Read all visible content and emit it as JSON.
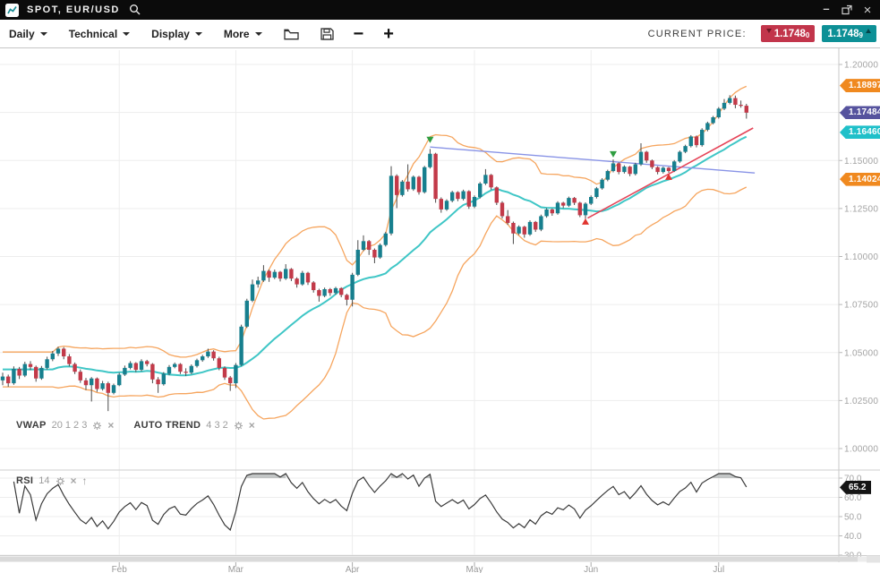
{
  "titlebar": {
    "title": "SPOT, EUR/USD"
  },
  "window_controls": {
    "minimize": "–",
    "close": "×"
  },
  "toolbar": {
    "menus": [
      {
        "label": "Daily"
      },
      {
        "label": "Technical"
      },
      {
        "label": "Display"
      },
      {
        "label": "More"
      }
    ],
    "zoom_out_label": "−",
    "zoom_in_label": "+",
    "current_price_label": "CURRENT PRICE:",
    "bid": {
      "value": "1.1748",
      "pip": "0"
    },
    "ask": {
      "value": "1.1748",
      "pip": "9"
    }
  },
  "legend": {
    "vwap_name": "VWAP",
    "vwap_params": "20 1 2 3",
    "autotrend_name": "AUTO TREND",
    "autotrend_params": "4 3 2",
    "rsi_name": "RSI",
    "rsi_params": "14",
    "rsi_expand_arrow": "↑"
  },
  "axes": {
    "price_ticks": [
      {
        "label": "1.20000",
        "value": 1.2
      },
      {
        "label": "1.17500",
        "value": 1.175
      },
      {
        "label": "1.15000",
        "value": 1.15
      },
      {
        "label": "1.12500",
        "value": 1.125
      },
      {
        "label": "1.10000",
        "value": 1.1
      },
      {
        "label": "1.07500",
        "value": 1.075
      },
      {
        "label": "1.05000",
        "value": 1.05
      },
      {
        "label": "1.02500",
        "value": 1.025
      },
      {
        "label": "1.00000",
        "value": 1.0
      }
    ],
    "rsi_ticks": [
      {
        "label": "70.0",
        "value": 70
      },
      {
        "label": "60.0",
        "value": 60
      },
      {
        "label": "50.0",
        "value": 50
      },
      {
        "label": "40.0",
        "value": 40
      },
      {
        "label": "30.0",
        "value": 30
      }
    ],
    "months": [
      {
        "label": "Feb",
        "index": 21
      },
      {
        "label": "Mar",
        "index": 42
      },
      {
        "label": "Apr",
        "index": 63
      },
      {
        "label": "May",
        "index": 85
      },
      {
        "label": "Jun",
        "index": 106
      },
      {
        "label": "Jul",
        "index": 129
      }
    ]
  },
  "price_labels": [
    {
      "name": "bollinger-upper",
      "value": "1.18897",
      "price": 1.18897,
      "color": "#f0891f"
    },
    {
      "name": "last-price",
      "value": "1.174845",
      "price": 1.174845,
      "color": "#56539e"
    },
    {
      "name": "vwap-value",
      "value": "1.16460",
      "price": 1.1646,
      "color": "#1fc0c9"
    },
    {
      "name": "bollinger-lower",
      "value": "1.14024",
      "price": 1.14024,
      "color": "#f0891f"
    }
  ],
  "rsi_value_label": {
    "value": "65.2",
    "number": 65.2
  },
  "colors": {
    "bull": "#177f8e",
    "bear": "#c23a49",
    "wick": "#4a4a4a",
    "vwap": "#3fc6c6",
    "band": "#f6a55e",
    "trend_blue": "#8893e6",
    "trend_red": "#e54458",
    "rsi_line": "#3a3a3a",
    "rsi_fill": "#a3a8a8",
    "grid": "#ededed",
    "axis": "#c9c9c9",
    "tick_text": "#a3a3a3",
    "sell_marker": "#2f9e41",
    "buy_marker": "#e0342f"
  },
  "chart_data": {
    "type": "candlestick",
    "symbol": "EUR/USD",
    "timeframe": "Daily",
    "ylim": [
      1.0,
      1.2
    ],
    "indicators": {
      "vwap_period": 20,
      "bollinger_stddev": 2,
      "rsi_period": 14,
      "bollinger_upper_current": 1.18897,
      "vwap_current": 1.1646,
      "bollinger_lower_current": 1.14024,
      "last_price": 1.174845,
      "rsi_current": 65.2
    },
    "candles": [
      [
        1.0355,
        1.0395,
        1.033,
        1.0375
      ],
      [
        1.0375,
        1.0385,
        1.0322,
        1.034
      ],
      [
        1.034,
        1.0428,
        1.0332,
        1.0415
      ],
      [
        1.0415,
        1.0425,
        1.0362,
        1.038
      ],
      [
        1.038,
        1.0452,
        1.0372,
        1.044
      ],
      [
        1.044,
        1.0455,
        1.0408,
        1.0425
      ],
      [
        1.0425,
        1.0432,
        1.0348,
        1.0365
      ],
      [
        1.0365,
        1.043,
        1.0358,
        1.042
      ],
      [
        1.042,
        1.0478,
        1.0412,
        1.0465
      ],
      [
        1.0465,
        1.0508,
        1.0455,
        1.0495
      ],
      [
        1.0495,
        1.053,
        1.0482,
        1.052
      ],
      [
        1.052,
        1.0528,
        1.0465,
        1.048
      ],
      [
        1.048,
        1.0492,
        1.0428,
        1.044
      ],
      [
        1.044,
        1.0448,
        1.0388,
        1.04
      ],
      [
        1.04,
        1.0412,
        1.0342,
        1.0355
      ],
      [
        1.0355,
        1.0368,
        1.0305,
        1.033
      ],
      [
        1.033,
        1.0372,
        1.0245,
        1.0365
      ],
      [
        1.0365,
        1.037,
        1.0295,
        1.031
      ],
      [
        1.031,
        1.0352,
        1.0302,
        1.034
      ],
      [
        1.034,
        1.0348,
        1.0195,
        1.029
      ],
      [
        1.029,
        1.0338,
        1.0282,
        1.033
      ],
      [
        1.033,
        1.0395,
        1.0325,
        1.0385
      ],
      [
        1.0385,
        1.0432,
        1.0378,
        1.042
      ],
      [
        1.042,
        1.0455,
        1.0412,
        1.0445
      ],
      [
        1.0445,
        1.045,
        1.0398,
        1.041
      ],
      [
        1.041,
        1.0465,
        1.0402,
        1.0455
      ],
      [
        1.0455,
        1.0462,
        1.0428,
        1.044
      ],
      [
        1.044,
        1.0445,
        1.034,
        1.036
      ],
      [
        1.036,
        1.0372,
        1.029,
        1.0335
      ],
      [
        1.0335,
        1.0398,
        1.0328,
        1.039
      ],
      [
        1.039,
        1.0435,
        1.0382,
        1.0425
      ],
      [
        1.0425,
        1.0448,
        1.0418,
        1.044
      ],
      [
        1.044,
        1.0445,
        1.0388,
        1.04
      ],
      [
        1.04,
        1.0418,
        1.0378,
        1.0395
      ],
      [
        1.0395,
        1.0438,
        1.0388,
        1.043
      ],
      [
        1.043,
        1.0468,
        1.0422,
        1.046
      ],
      [
        1.046,
        1.0488,
        1.0452,
        1.048
      ],
      [
        1.048,
        1.052,
        1.0472,
        1.0505
      ],
      [
        1.0505,
        1.0512,
        1.0458,
        1.047
      ],
      [
        1.047,
        1.0478,
        1.0408,
        1.042
      ],
      [
        1.042,
        1.0428,
        1.0358,
        1.037
      ],
      [
        1.037,
        1.0378,
        1.03,
        1.034
      ],
      [
        1.034,
        1.0445,
        1.0315,
        1.0435
      ],
      [
        1.0435,
        1.0645,
        1.043,
        1.0635
      ],
      [
        1.0635,
        1.078,
        1.0628,
        1.077
      ],
      [
        1.077,
        1.088,
        1.0762,
        1.0855
      ],
      [
        1.0855,
        1.0895,
        1.0838,
        1.0875
      ],
      [
        1.0875,
        1.0955,
        1.0868,
        1.0925
      ],
      [
        1.0925,
        1.0932,
        1.0868,
        1.089
      ],
      [
        1.089,
        1.0932,
        1.0882,
        1.092
      ],
      [
        1.092,
        1.0925,
        1.087,
        1.0885
      ],
      [
        1.0885,
        1.096,
        1.0878,
        1.0935
      ],
      [
        1.0935,
        1.094,
        1.0872,
        1.0885
      ],
      [
        1.0885,
        1.0892,
        1.0838,
        1.0855
      ],
      [
        1.0855,
        1.0925,
        1.0848,
        1.0915
      ],
      [
        1.0915,
        1.092,
        1.0852,
        1.0865
      ],
      [
        1.0865,
        1.0872,
        1.0812,
        1.0825
      ],
      [
        1.0825,
        1.0832,
        1.0765,
        1.0795
      ],
      [
        1.0795,
        1.0838,
        1.0788,
        1.083
      ],
      [
        1.083,
        1.0836,
        1.0795,
        1.081
      ],
      [
        1.081,
        1.0842,
        1.0802,
        1.0835
      ],
      [
        1.0835,
        1.084,
        1.0788,
        1.08
      ],
      [
        1.08,
        1.0806,
        1.0745,
        1.0775
      ],
      [
        1.0775,
        1.0915,
        1.074,
        1.0905
      ],
      [
        1.0905,
        1.1085,
        1.0898,
        1.1035
      ],
      [
        1.1035,
        1.111,
        1.1028,
        1.108
      ],
      [
        1.108,
        1.1086,
        1.1008,
        1.1035
      ],
      [
        1.1035,
        1.1042,
        1.0965,
        1.0995
      ],
      [
        1.0995,
        1.1068,
        1.0988,
        1.106
      ],
      [
        1.106,
        1.1128,
        1.1052,
        1.112
      ],
      [
        1.112,
        1.147,
        1.111,
        1.142
      ],
      [
        1.142,
        1.1428,
        1.1252,
        1.132
      ],
      [
        1.132,
        1.1398,
        1.1312,
        1.139
      ],
      [
        1.139,
        1.148,
        1.1338,
        1.135
      ],
      [
        1.135,
        1.1422,
        1.1342,
        1.1415
      ],
      [
        1.1415,
        1.142,
        1.1322,
        1.1335
      ],
      [
        1.1335,
        1.1472,
        1.1328,
        1.1465
      ],
      [
        1.1465,
        1.156,
        1.1458,
        1.1535
      ],
      [
        1.1535,
        1.154,
        1.128,
        1.13
      ],
      [
        1.13,
        1.1308,
        1.1228,
        1.1245
      ],
      [
        1.1245,
        1.1298,
        1.1238,
        1.129
      ],
      [
        1.129,
        1.1342,
        1.1282,
        1.1335
      ],
      [
        1.1335,
        1.134,
        1.1288,
        1.13
      ],
      [
        1.13,
        1.1348,
        1.1292,
        1.134
      ],
      [
        1.134,
        1.1345,
        1.1248,
        1.126
      ],
      [
        1.126,
        1.1318,
        1.1252,
        1.131
      ],
      [
        1.131,
        1.1388,
        1.1302,
        1.138
      ],
      [
        1.138,
        1.1455,
        1.1372,
        1.1425
      ],
      [
        1.1425,
        1.143,
        1.1348,
        1.136
      ],
      [
        1.136,
        1.1365,
        1.1268,
        1.128
      ],
      [
        1.128,
        1.1288,
        1.1198,
        1.121
      ],
      [
        1.121,
        1.1242,
        1.1165,
        1.1175
      ],
      [
        1.1175,
        1.1182,
        1.1065,
        1.112
      ],
      [
        1.112,
        1.1162,
        1.1112,
        1.1155
      ],
      [
        1.1155,
        1.116,
        1.1098,
        1.1115
      ],
      [
        1.1115,
        1.1188,
        1.1108,
        1.118
      ],
      [
        1.118,
        1.1185,
        1.1128,
        1.114
      ],
      [
        1.114,
        1.1218,
        1.1132,
        1.121
      ],
      [
        1.121,
        1.1252,
        1.1202,
        1.1245
      ],
      [
        1.1245,
        1.125,
        1.1212,
        1.1225
      ],
      [
        1.1225,
        1.1288,
        1.1218,
        1.128
      ],
      [
        1.128,
        1.1285,
        1.1252,
        1.1265
      ],
      [
        1.1265,
        1.1312,
        1.1258,
        1.1305
      ],
      [
        1.1305,
        1.131,
        1.1268,
        1.128
      ],
      [
        1.128,
        1.1285,
        1.1205,
        1.1215
      ],
      [
        1.1215,
        1.1282,
        1.1195,
        1.1275
      ],
      [
        1.1275,
        1.1318,
        1.1268,
        1.131
      ],
      [
        1.131,
        1.1362,
        1.1302,
        1.1355
      ],
      [
        1.1355,
        1.1408,
        1.1348,
        1.14
      ],
      [
        1.14,
        1.1452,
        1.1392,
        1.1445
      ],
      [
        1.1445,
        1.1505,
        1.1438,
        1.1485
      ],
      [
        1.1485,
        1.149,
        1.1428,
        1.144
      ],
      [
        1.144,
        1.1475,
        1.1432,
        1.1468
      ],
      [
        1.1468,
        1.1472,
        1.1418,
        1.143
      ],
      [
        1.143,
        1.1488,
        1.1422,
        1.148
      ],
      [
        1.148,
        1.159,
        1.1472,
        1.1545
      ],
      [
        1.1545,
        1.155,
        1.1488,
        1.15
      ],
      [
        1.15,
        1.1505,
        1.1455,
        1.1465
      ],
      [
        1.1465,
        1.147,
        1.1428,
        1.144
      ],
      [
        1.144,
        1.1468,
        1.1432,
        1.1462
      ],
      [
        1.1462,
        1.1466,
        1.1436,
        1.1445
      ],
      [
        1.1445,
        1.1502,
        1.144,
        1.1495
      ],
      [
        1.1495,
        1.1552,
        1.1488,
        1.1545
      ],
      [
        1.1545,
        1.1582,
        1.1538,
        1.1575
      ],
      [
        1.1575,
        1.1632,
        1.1568,
        1.1625
      ],
      [
        1.1625,
        1.163,
        1.1568,
        1.158
      ],
      [
        1.158,
        1.1668,
        1.1572,
        1.166
      ],
      [
        1.166,
        1.1702,
        1.1652,
        1.1695
      ],
      [
        1.1695,
        1.1732,
        1.1688,
        1.1725
      ],
      [
        1.1725,
        1.1778,
        1.1718,
        1.177
      ],
      [
        1.177,
        1.182,
        1.1762,
        1.18
      ],
      [
        1.18,
        1.184,
        1.1792,
        1.1825
      ],
      [
        1.1825,
        1.1838,
        1.1772,
        1.179
      ],
      [
        1.179,
        1.1812,
        1.1775,
        1.1785
      ],
      [
        1.1785,
        1.1795,
        1.1718,
        1.1749
      ]
    ],
    "trend_lines": [
      {
        "name": "auto-trend-resistance",
        "color_key": "trend_blue",
        "width": 1.4,
        "from_index": 77,
        "from_price": 1.157,
        "to_index": 135.5,
        "to_price": 1.1435
      },
      {
        "name": "auto-trend-support",
        "color_key": "trend_red",
        "width": 1.6,
        "from_index": 105.4,
        "from_price": 1.12,
        "to_index": 135.2,
        "to_price": 1.1669
      }
    ],
    "markers": [
      {
        "kind": "sell",
        "index": 77,
        "price": 1.1605
      },
      {
        "kind": "sell",
        "index": 110,
        "price": 1.153
      },
      {
        "kind": "buy",
        "index": 105,
        "price": 1.1185
      },
      {
        "kind": "buy",
        "index": 120,
        "price": 1.1418
      }
    ],
    "rsi_overbought": 70,
    "rsi_oversold": 30
  }
}
